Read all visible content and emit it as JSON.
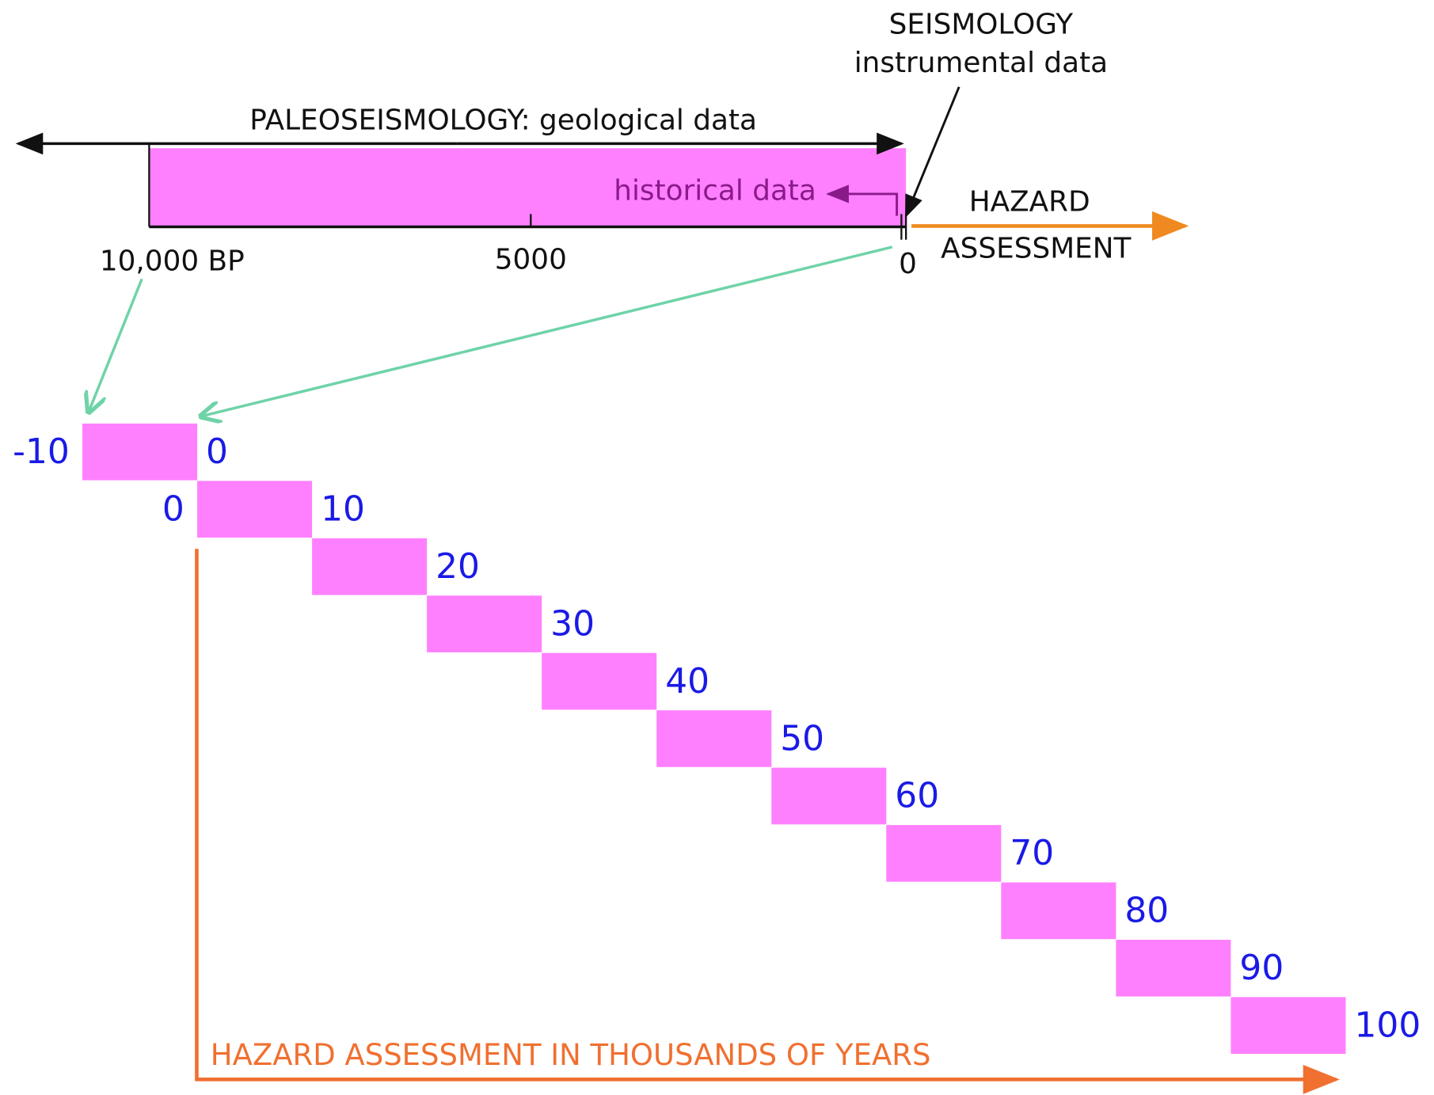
{
  "timeline": {
    "paleoseismology": "PALEOSEISMOLOGY: geological data",
    "seismology": [
      "SEISMOLOGY",
      "instrumental data"
    ],
    "historical": "historical data",
    "hazard": [
      "HAZARD",
      "ASSESSMENT"
    ],
    "ticks": [
      "10,000 BP",
      "5000",
      "0"
    ]
  },
  "steps": [
    {
      "start": "-10",
      "end": "0"
    },
    {
      "start": "0",
      "end": "10"
    },
    {
      "end": "20"
    },
    {
      "end": "30"
    },
    {
      "end": "40"
    },
    {
      "end": "50"
    },
    {
      "end": "60"
    },
    {
      "end": "70"
    },
    {
      "end": "80"
    },
    {
      "end": "90"
    },
    {
      "end": "100"
    }
  ],
  "bottom_label": "HAZARD ASSESSMENT IN THOUSANDS OF YEARS"
}
